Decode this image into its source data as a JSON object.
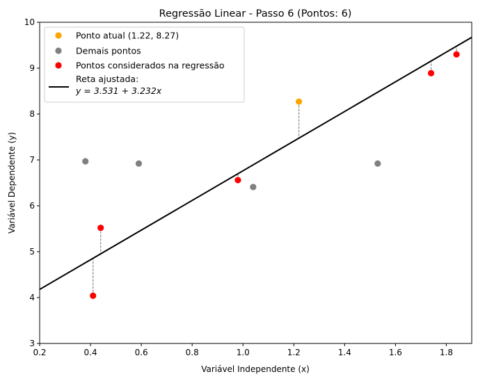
{
  "chart_data": {
    "type": "scatter",
    "title": "Regressão Linear - Passo 6 (Pontos: 6)",
    "xlabel": "Variável Independente (x)",
    "ylabel": "Variável Dependente (y)",
    "xlim": [
      0.2,
      1.9
    ],
    "ylim": [
      3,
      10
    ],
    "xticks": [
      0.2,
      0.4,
      0.6,
      0.8,
      1.0,
      1.2,
      1.4,
      1.6,
      1.8
    ],
    "xtick_labels": [
      "0.2",
      "0.4",
      "0.6",
      "0.8",
      "1.0",
      "1.2",
      "1.4",
      "1.6",
      "1.8"
    ],
    "yticks": [
      3,
      4,
      5,
      6,
      7,
      8,
      9,
      10
    ],
    "ytick_labels": [
      "3",
      "4",
      "5",
      "6",
      "7",
      "8",
      "9",
      "10"
    ],
    "grid": false,
    "legend_position": "top-left",
    "colors": {
      "current": "#ffa500",
      "other": "#808080",
      "considered": "#ff0000",
      "line": "#000000",
      "residual": "#808080"
    },
    "current_point": {
      "x": 1.22,
      "y": 8.27
    },
    "other_points": [
      {
        "x": 0.38,
        "y": 6.97
      },
      {
        "x": 0.59,
        "y": 6.92
      },
      {
        "x": 1.04,
        "y": 6.41
      },
      {
        "x": 1.53,
        "y": 6.92
      }
    ],
    "considered_points": [
      {
        "x": 0.41,
        "y": 4.04
      },
      {
        "x": 0.44,
        "y": 5.52
      },
      {
        "x": 0.98,
        "y": 6.56
      },
      {
        "x": 1.74,
        "y": 8.89
      },
      {
        "x": 1.84,
        "y": 9.3
      }
    ],
    "fit_line": {
      "intercept": 3.531,
      "slope": 3.232
    },
    "legend": [
      {
        "key": "current",
        "label": "Ponto atual (1.22, 8.27)"
      },
      {
        "key": "other",
        "label": "Demais pontos"
      },
      {
        "key": "considered",
        "label": "Pontos considerados na regressão"
      },
      {
        "key": "line",
        "label": "Reta ajustada:",
        "equation": "y = 3.531 + 3.232x"
      }
    ]
  }
}
